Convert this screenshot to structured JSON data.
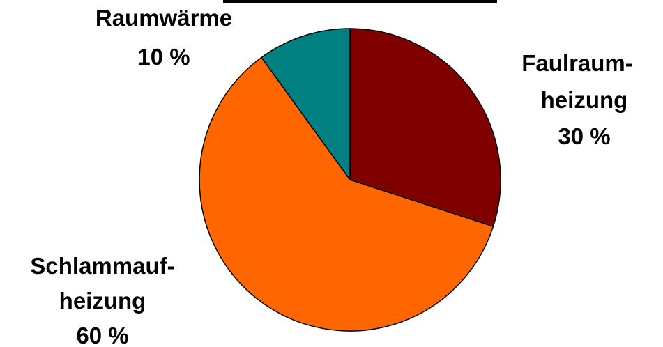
{
  "chart_data": {
    "type": "pie",
    "start_angle_deg": 0,
    "direction": "clockwise",
    "slices": [
      {
        "name": "Faulraumheizung",
        "value": 30,
        "color": "#800000",
        "label_lines": [
          "Faulraum-",
          "heizung",
          "30 %"
        ]
      },
      {
        "name": "Schlammaufheizung",
        "value": 60,
        "color": "#FF6600",
        "label_lines": [
          "Schlammauf-",
          "heizung",
          "60 %"
        ]
      },
      {
        "name": "Raumwärme",
        "value": 10,
        "color": "#008080",
        "label_lines": [
          "Raumwärme",
          "10 %"
        ]
      }
    ]
  }
}
